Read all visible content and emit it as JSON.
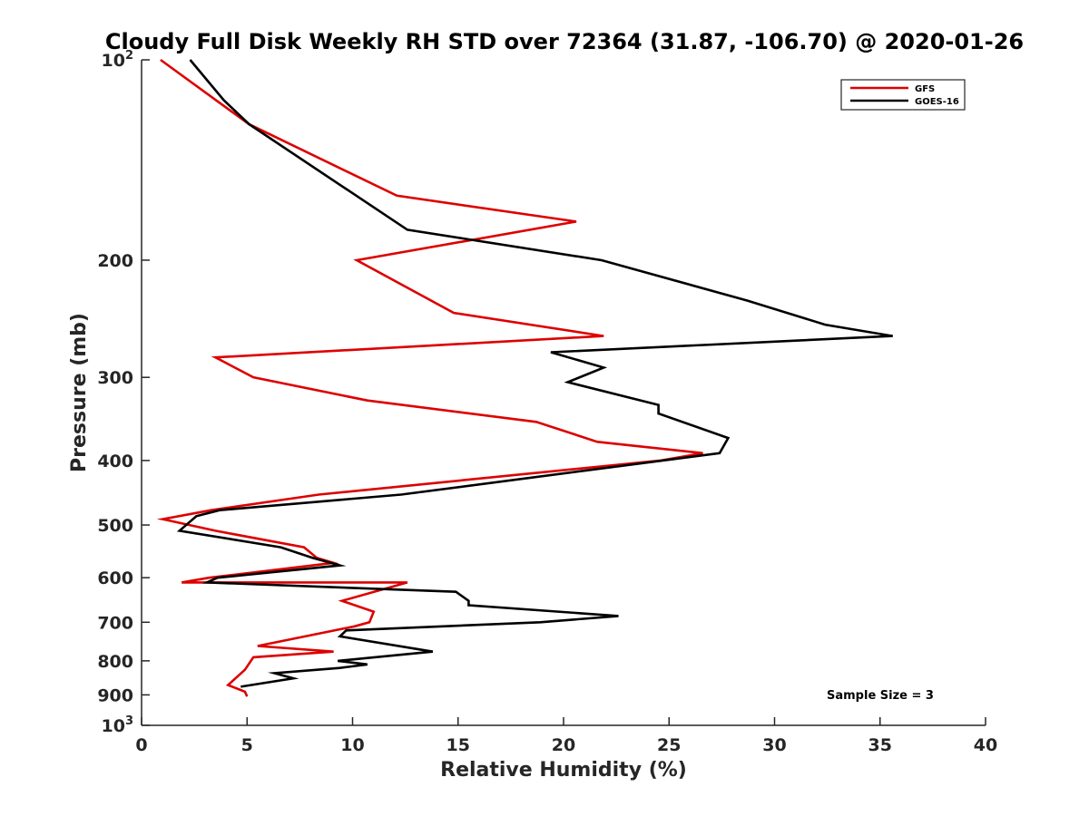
{
  "chart_data": {
    "type": "line",
    "title": "Cloudy Full Disk Weekly RH STD over 72364 (31.87, -106.70) @ 2020-01-26",
    "xlabel": "Relative Humidity (%)",
    "ylabel": "Pressure (mb)",
    "xlim": [
      0,
      40
    ],
    "ylim": [
      100,
      1000
    ],
    "y_scale": "log",
    "y_reversed": true,
    "x_ticks": [
      "0",
      "5",
      "10",
      "15",
      "20",
      "25",
      "30",
      "35",
      "40"
    ],
    "y_ticks": [
      {
        "value": 100,
        "base": "10",
        "exp": "2"
      },
      {
        "value": 200,
        "label": "200"
      },
      {
        "value": 300,
        "label": "300"
      },
      {
        "value": 400,
        "label": "400"
      },
      {
        "value": 500,
        "label": "500"
      },
      {
        "value": 600,
        "label": "600"
      },
      {
        "value": 700,
        "label": "700"
      },
      {
        "value": 800,
        "label": "800"
      },
      {
        "value": 900,
        "label": "900"
      },
      {
        "value": 1000,
        "base": "10",
        "exp": "3"
      }
    ],
    "legend": {
      "position": "top-right"
    },
    "annotation": "Sample Size = 3",
    "series": [
      {
        "name": "GFS",
        "color": "#dd0000",
        "points": [
          [
            0.9,
            100
          ],
          [
            5.1,
            125
          ],
          [
            12.1,
            160
          ],
          [
            20.6,
            175
          ],
          [
            10.2,
            200
          ],
          [
            14.8,
            240
          ],
          [
            21.9,
            260
          ],
          [
            3.5,
            280
          ],
          [
            5.3,
            300
          ],
          [
            10.7,
            325
          ],
          [
            18.7,
            350
          ],
          [
            21.6,
            375
          ],
          [
            26.6,
            390
          ],
          [
            24.6,
            400
          ],
          [
            8.4,
            450
          ],
          [
            3.3,
            475
          ],
          [
            1.0,
            490
          ],
          [
            3.5,
            510
          ],
          [
            7.7,
            540
          ],
          [
            8.3,
            560
          ],
          [
            9.1,
            570
          ],
          [
            3.2,
            600
          ],
          [
            1.9,
            610
          ],
          [
            12.6,
            610
          ],
          [
            9.5,
            650
          ],
          [
            11.0,
            675
          ],
          [
            10.8,
            700
          ],
          [
            10.1,
            710
          ],
          [
            5.5,
            760
          ],
          [
            9.1,
            775
          ],
          [
            5.3,
            790
          ],
          [
            4.9,
            825
          ],
          [
            4.1,
            870
          ],
          [
            4.9,
            890
          ],
          [
            5.0,
            905
          ]
        ]
      },
      {
        "name": "GOES-16",
        "color": "#000000",
        "points": [
          [
            2.3,
            100
          ],
          [
            3.9,
            115
          ],
          [
            5.1,
            125
          ],
          [
            12.6,
            180
          ],
          [
            21.8,
            200
          ],
          [
            28.7,
            230
          ],
          [
            32.4,
            250
          ],
          [
            35.6,
            260
          ],
          [
            19.4,
            275
          ],
          [
            21.9,
            290
          ],
          [
            20.2,
            305
          ],
          [
            24.5,
            330
          ],
          [
            24.5,
            340
          ],
          [
            27.8,
            370
          ],
          [
            27.4,
            390
          ],
          [
            12.3,
            450
          ],
          [
            3.7,
            475
          ],
          [
            2.6,
            485
          ],
          [
            1.8,
            510
          ],
          [
            6.6,
            540
          ],
          [
            8.1,
            560
          ],
          [
            9.4,
            575
          ],
          [
            3.6,
            600
          ],
          [
            3.1,
            610
          ],
          [
            14.9,
            630
          ],
          [
            15.5,
            650
          ],
          [
            15.5,
            660
          ],
          [
            22.6,
            685
          ],
          [
            18.9,
            700
          ],
          [
            9.7,
            720
          ],
          [
            9.4,
            735
          ],
          [
            13.8,
            775
          ],
          [
            9.3,
            800
          ],
          [
            10.7,
            810
          ],
          [
            9.4,
            820
          ],
          [
            6.3,
            835
          ],
          [
            7.2,
            850
          ],
          [
            4.7,
            875
          ]
        ]
      }
    ]
  }
}
